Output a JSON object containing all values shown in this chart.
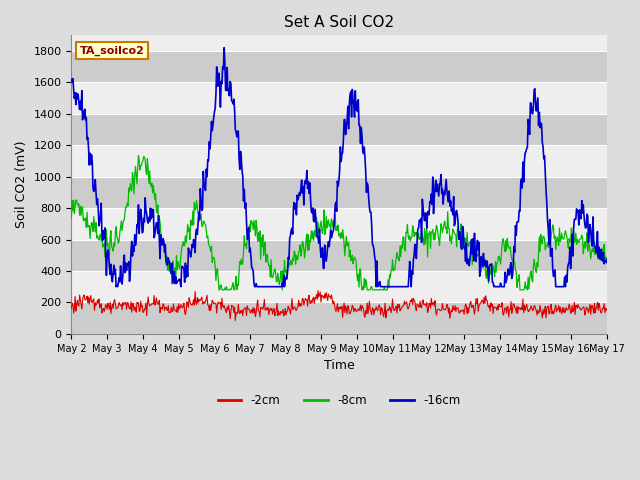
{
  "title": "Set A Soil CO2",
  "ylabel": "Soil CO2 (mV)",
  "xlabel": "Time",
  "legend_label": "TA_soilco2",
  "series_labels": [
    "-2cm",
    "-8cm",
    "-16cm"
  ],
  "colors": [
    "#dd0000",
    "#00bb00",
    "#0000cc"
  ],
  "ylim": [
    0,
    1900
  ],
  "yticks": [
    0,
    200,
    400,
    600,
    800,
    1000,
    1200,
    1400,
    1600,
    1800
  ],
  "n_days": 15,
  "n_points": 720,
  "bg_color": "#dddddd",
  "plot_bg": "#eeeeee",
  "stripe_color": "#cccccc",
  "grid_color": "#ffffff",
  "title_fontsize": 11,
  "axis_fontsize": 9,
  "tick_fontsize": 8,
  "xtick_labels": [
    "May 2",
    "May 3",
    "May 4",
    "May 5",
    "May 6",
    "May 7",
    "May 8",
    "May 9",
    "May 10",
    "May 11",
    "May 12",
    "May 13",
    "May 14",
    "May 15",
    "May 16",
    "May 17"
  ],
  "xtick_positions": [
    0,
    1,
    2,
    3,
    4,
    5,
    6,
    7,
    8,
    9,
    10,
    11,
    12,
    13,
    14,
    15
  ]
}
